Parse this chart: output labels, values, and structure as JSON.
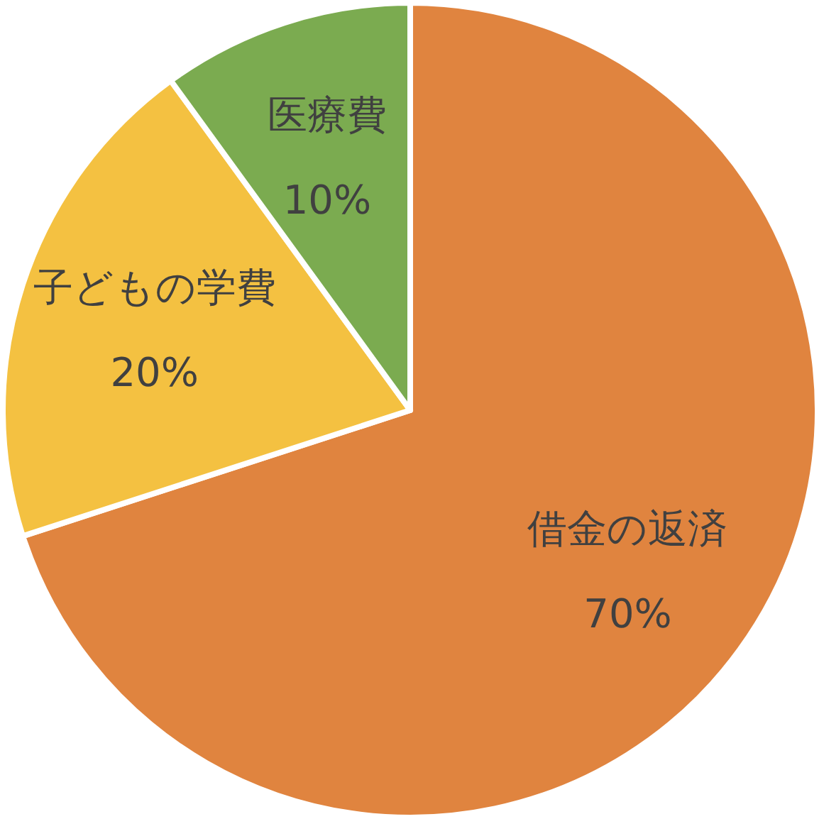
{
  "chart_data": {
    "type": "pie",
    "categories": [
      "借金の返済",
      "子どもの学費",
      "医療費"
    ],
    "values": [
      70,
      20,
      10
    ],
    "colors": [
      "#e0843f",
      "#f4c141",
      "#7bab50"
    ],
    "value_labels": [
      "70%",
      "20%",
      "10%"
    ]
  }
}
